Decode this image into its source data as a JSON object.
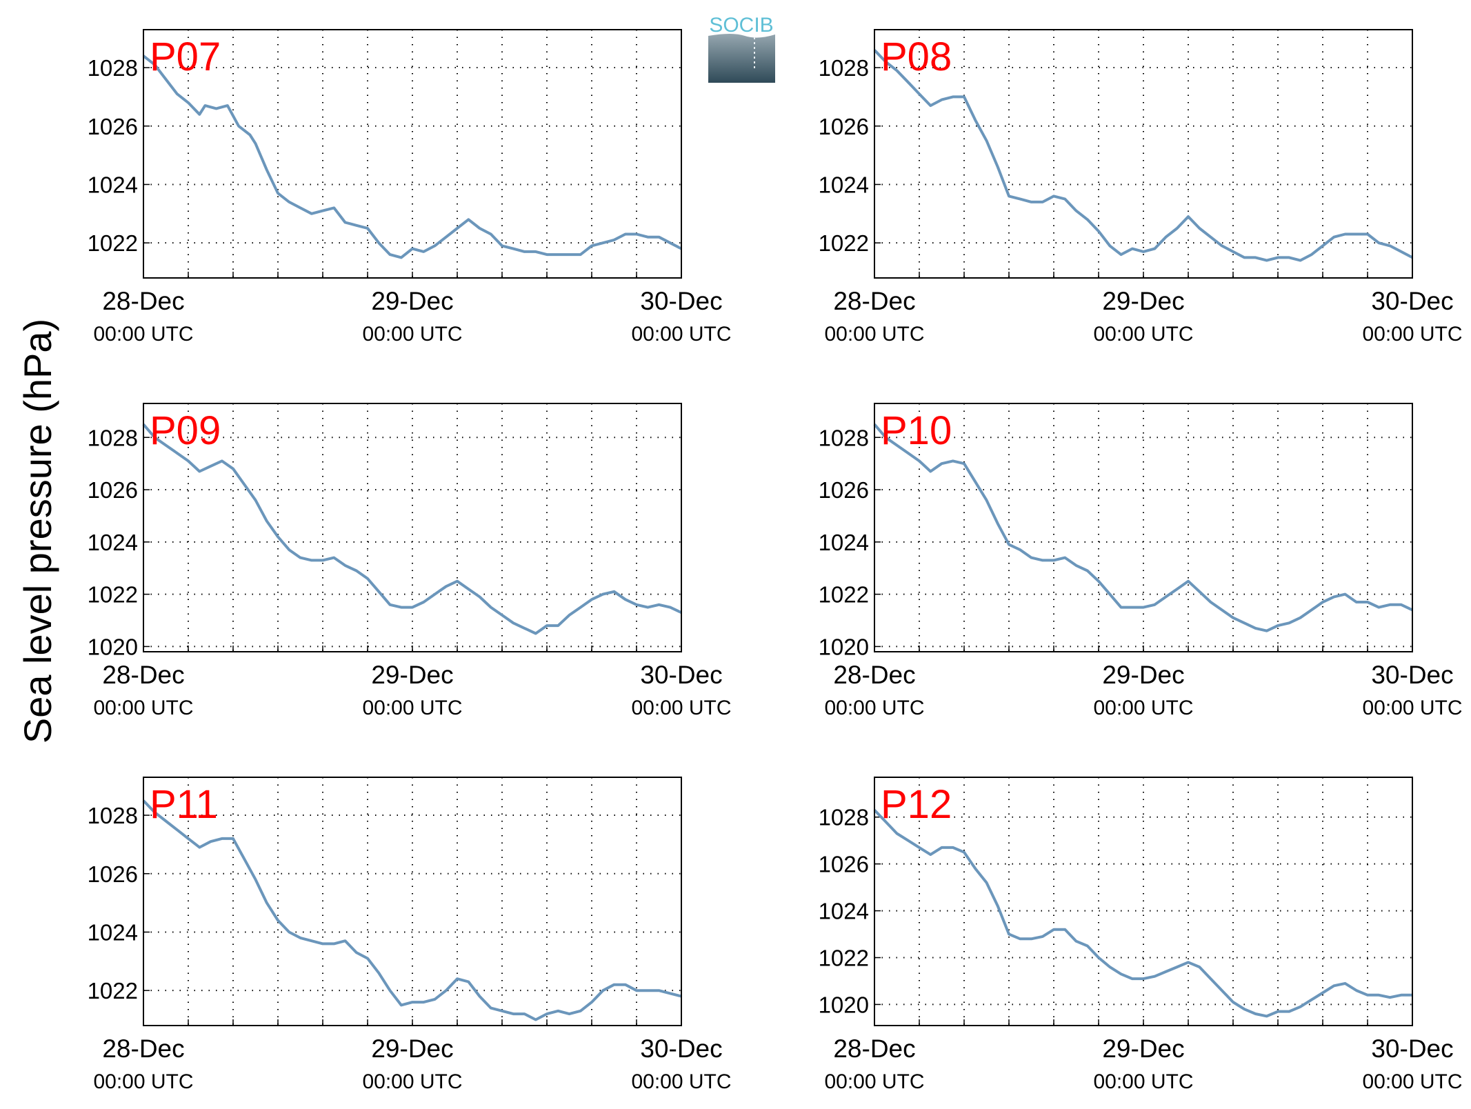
{
  "figure": {
    "ylabel": "Sea level pressure (hPa)",
    "logo": {
      "text": "SOCIB",
      "gradient": [
        "#96a7b0",
        "#2f4a58"
      ],
      "text_color": "#5fbfd6"
    },
    "line_color": "#6b96bb"
  },
  "chart_data": [
    {
      "type": "line",
      "station": "P07",
      "x_unit": "hours since 28-Dec 00:00 UTC",
      "xlim": [
        0,
        48
      ],
      "ylim": [
        1020.8,
        1029.3
      ],
      "yticks": [
        1022,
        1024,
        1026,
        1028
      ],
      "xtick_labels": [
        {
          "date": "28-Dec",
          "time": "00:00 UTC"
        },
        {
          "date": "29-Dec",
          "time": "00:00 UTC"
        },
        {
          "date": "30-Dec",
          "time": "00:00 UTC"
        }
      ],
      "grid": true,
      "series": [
        {
          "x": [
            0,
            1,
            2,
            3,
            4,
            5,
            5.5,
            6.5,
            7.5,
            8.5,
            9.5,
            10,
            11,
            12,
            13,
            14,
            15,
            16,
            17,
            18,
            19,
            20,
            21,
            22,
            23,
            24,
            25,
            26,
            27,
            28,
            29,
            30,
            31,
            32,
            33,
            34,
            35,
            36,
            37,
            38,
            39,
            40,
            41,
            42,
            43,
            44,
            45,
            46,
            47,
            48
          ],
          "y": [
            1028.4,
            1028.1,
            1027.6,
            1027.1,
            1026.8,
            1026.4,
            1026.7,
            1026.6,
            1026.7,
            1026.0,
            1025.7,
            1025.4,
            1024.5,
            1023.7,
            1023.4,
            1023.2,
            1023.0,
            1023.1,
            1023.2,
            1022.7,
            1022.6,
            1022.5,
            1022.0,
            1021.6,
            1021.5,
            1021.8,
            1021.7,
            1021.9,
            1022.2,
            1022.5,
            1022.8,
            1022.5,
            1022.3,
            1021.9,
            1021.8,
            1021.7,
            1021.7,
            1021.6,
            1021.6,
            1021.6,
            1021.6,
            1021.9,
            1022.0,
            1022.1,
            1022.3,
            1022.3,
            1022.2,
            1022.2,
            1022.0,
            1021.8
          ]
        }
      ]
    },
    {
      "type": "line",
      "station": "P08",
      "x_unit": "hours since 28-Dec 00:00 UTC",
      "xlim": [
        0,
        48
      ],
      "ylim": [
        1020.8,
        1029.3
      ],
      "yticks": [
        1022,
        1024,
        1026,
        1028
      ],
      "xtick_labels": [
        {
          "date": "28-Dec",
          "time": "00:00 UTC"
        },
        {
          "date": "29-Dec",
          "time": "00:00 UTC"
        },
        {
          "date": "30-Dec",
          "time": "00:00 UTC"
        }
      ],
      "grid": true,
      "series": [
        {
          "x": [
            0,
            1,
            2,
            3,
            4,
            5,
            6,
            7,
            8,
            9,
            10,
            11,
            12,
            13,
            14,
            15,
            16,
            17,
            18,
            19,
            20,
            21,
            22,
            23,
            24,
            25,
            26,
            27,
            28,
            29,
            30,
            31,
            32,
            33,
            34,
            35,
            36,
            37,
            38,
            39,
            40,
            41,
            42,
            43,
            44,
            45,
            46,
            47,
            48
          ],
          "y": [
            1028.6,
            1028.2,
            1027.9,
            1027.5,
            1027.1,
            1026.7,
            1026.9,
            1027.0,
            1027.0,
            1026.2,
            1025.5,
            1024.6,
            1023.6,
            1023.5,
            1023.4,
            1023.4,
            1023.6,
            1023.5,
            1023.1,
            1022.8,
            1022.4,
            1021.9,
            1021.6,
            1021.8,
            1021.7,
            1021.8,
            1022.2,
            1022.5,
            1022.9,
            1022.5,
            1022.2,
            1021.9,
            1021.7,
            1021.5,
            1021.5,
            1021.4,
            1021.5,
            1021.5,
            1021.4,
            1021.6,
            1021.9,
            1022.2,
            1022.3,
            1022.3,
            1022.3,
            1022.0,
            1021.9,
            1021.7,
            1021.5
          ]
        }
      ]
    },
    {
      "type": "line",
      "station": "P09",
      "x_unit": "hours since 28-Dec 00:00 UTC",
      "xlim": [
        0,
        48
      ],
      "ylim": [
        1019.8,
        1029.3
      ],
      "yticks": [
        1020,
        1022,
        1024,
        1026,
        1028
      ],
      "xtick_labels": [
        {
          "date": "28-Dec",
          "time": "00:00 UTC"
        },
        {
          "date": "29-Dec",
          "time": "00:00 UTC"
        },
        {
          "date": "30-Dec",
          "time": "00:00 UTC"
        }
      ],
      "grid": true,
      "series": [
        {
          "x": [
            0,
            1,
            2,
            3,
            4,
            5,
            6,
            7,
            8,
            9,
            10,
            11,
            12,
            13,
            14,
            15,
            16,
            17,
            18,
            19,
            20,
            21,
            22,
            23,
            24,
            25,
            26,
            27,
            28,
            29,
            30,
            31,
            32,
            33,
            34,
            35,
            36,
            37,
            38,
            39,
            40,
            41,
            42,
            43,
            44,
            45,
            46,
            47,
            48
          ],
          "y": [
            1028.5,
            1028.0,
            1027.7,
            1027.4,
            1027.1,
            1026.7,
            1026.9,
            1027.1,
            1026.8,
            1026.2,
            1025.6,
            1024.8,
            1024.2,
            1023.7,
            1023.4,
            1023.3,
            1023.3,
            1023.4,
            1023.1,
            1022.9,
            1022.6,
            1022.1,
            1021.6,
            1021.5,
            1021.5,
            1021.7,
            1022.0,
            1022.3,
            1022.5,
            1022.2,
            1021.9,
            1021.5,
            1021.2,
            1020.9,
            1020.7,
            1020.5,
            1020.8,
            1020.8,
            1021.2,
            1021.5,
            1021.8,
            1022.0,
            1022.1,
            1021.8,
            1021.6,
            1021.5,
            1021.6,
            1021.5,
            1021.3
          ]
        }
      ]
    },
    {
      "type": "line",
      "station": "P10",
      "x_unit": "hours since 28-Dec 00:00 UTC",
      "xlim": [
        0,
        48
      ],
      "ylim": [
        1019.8,
        1029.3
      ],
      "yticks": [
        1020,
        1022,
        1024,
        1026,
        1028
      ],
      "xtick_labels": [
        {
          "date": "28-Dec",
          "time": "00:00 UTC"
        },
        {
          "date": "29-Dec",
          "time": "00:00 UTC"
        },
        {
          "date": "30-Dec",
          "time": "00:00 UTC"
        }
      ],
      "grid": true,
      "series": [
        {
          "x": [
            0,
            1,
            2,
            3,
            4,
            5,
            6,
            7,
            8,
            9,
            10,
            11,
            12,
            13,
            14,
            15,
            16,
            17,
            18,
            19,
            20,
            21,
            22,
            23,
            24,
            25,
            26,
            27,
            28,
            29,
            30,
            31,
            32,
            33,
            34,
            35,
            36,
            37,
            38,
            39,
            40,
            41,
            42,
            43,
            44,
            45,
            46,
            47,
            48
          ],
          "y": [
            1028.5,
            1028.0,
            1027.7,
            1027.4,
            1027.1,
            1026.7,
            1027.0,
            1027.1,
            1027.0,
            1026.3,
            1025.6,
            1024.7,
            1023.9,
            1023.7,
            1023.4,
            1023.3,
            1023.3,
            1023.4,
            1023.1,
            1022.9,
            1022.5,
            1022.0,
            1021.5,
            1021.5,
            1021.5,
            1021.6,
            1021.9,
            1022.2,
            1022.5,
            1022.1,
            1021.7,
            1021.4,
            1021.1,
            1020.9,
            1020.7,
            1020.6,
            1020.8,
            1020.9,
            1021.1,
            1021.4,
            1021.7,
            1021.9,
            1022.0,
            1021.7,
            1021.7,
            1021.5,
            1021.6,
            1021.6,
            1021.4
          ]
        }
      ]
    },
    {
      "type": "line",
      "station": "P11",
      "x_unit": "hours since 28-Dec 00:00 UTC",
      "xlim": [
        0,
        48
      ],
      "ylim": [
        1020.8,
        1029.3
      ],
      "yticks": [
        1022,
        1024,
        1026,
        1028
      ],
      "xtick_labels": [
        {
          "date": "28-Dec",
          "time": "00:00 UTC"
        },
        {
          "date": "29-Dec",
          "time": "00:00 UTC"
        },
        {
          "date": "30-Dec",
          "time": "00:00 UTC"
        }
      ],
      "grid": true,
      "series": [
        {
          "x": [
            0,
            1,
            2,
            3,
            4,
            5,
            6,
            7,
            8,
            9,
            10,
            11,
            12,
            13,
            14,
            15,
            16,
            17,
            18,
            19,
            20,
            21,
            22,
            23,
            24,
            25,
            26,
            27,
            28,
            29,
            30,
            31,
            32,
            33,
            34,
            35,
            36,
            37,
            38,
            39,
            40,
            41,
            42,
            43,
            44,
            45,
            46,
            47,
            48
          ],
          "y": [
            1028.5,
            1028.1,
            1027.8,
            1027.5,
            1027.2,
            1026.9,
            1027.1,
            1027.2,
            1027.2,
            1026.5,
            1025.8,
            1025.0,
            1024.4,
            1024.0,
            1023.8,
            1023.7,
            1023.6,
            1023.6,
            1023.7,
            1023.3,
            1023.1,
            1022.6,
            1022.0,
            1021.5,
            1021.6,
            1021.6,
            1021.7,
            1022.0,
            1022.4,
            1022.3,
            1021.8,
            1021.4,
            1021.3,
            1021.2,
            1021.2,
            1021.0,
            1021.2,
            1021.3,
            1021.2,
            1021.3,
            1021.6,
            1022.0,
            1022.2,
            1022.2,
            1022.0,
            1022.0,
            1022.0,
            1021.9,
            1021.8
          ]
        }
      ]
    },
    {
      "type": "line",
      "station": "P12",
      "x_unit": "hours since 28-Dec 00:00 UTC",
      "xlim": [
        0,
        48
      ],
      "ylim": [
        1019.1,
        1029.7
      ],
      "yticks": [
        1020,
        1022,
        1024,
        1026,
        1028
      ],
      "xtick_labels": [
        {
          "date": "28-Dec",
          "time": "00:00 UTC"
        },
        {
          "date": "29-Dec",
          "time": "00:00 UTC"
        },
        {
          "date": "30-Dec",
          "time": "00:00 UTC"
        }
      ],
      "grid": true,
      "series": [
        {
          "x": [
            0,
            1,
            2,
            3,
            4,
            5,
            6,
            7,
            8,
            9,
            10,
            11,
            12,
            13,
            14,
            15,
            16,
            17,
            18,
            19,
            20,
            21,
            22,
            23,
            24,
            25,
            26,
            27,
            28,
            29,
            30,
            31,
            32,
            33,
            34,
            35,
            36,
            37,
            38,
            39,
            40,
            41,
            42,
            43,
            44,
            45,
            46,
            47,
            48
          ],
          "y": [
            1028.3,
            1027.8,
            1027.3,
            1027.0,
            1026.7,
            1026.4,
            1026.7,
            1026.7,
            1026.5,
            1025.8,
            1025.2,
            1024.2,
            1023.0,
            1022.8,
            1022.8,
            1022.9,
            1023.2,
            1023.2,
            1022.7,
            1022.5,
            1022.0,
            1021.6,
            1021.3,
            1021.1,
            1021.1,
            1021.2,
            1021.4,
            1021.6,
            1021.8,
            1021.6,
            1021.1,
            1020.6,
            1020.1,
            1019.8,
            1019.6,
            1019.5,
            1019.7,
            1019.7,
            1019.9,
            1020.2,
            1020.5,
            1020.8,
            1020.9,
            1020.6,
            1020.4,
            1020.4,
            1020.3,
            1020.4,
            1020.4
          ]
        }
      ]
    }
  ]
}
